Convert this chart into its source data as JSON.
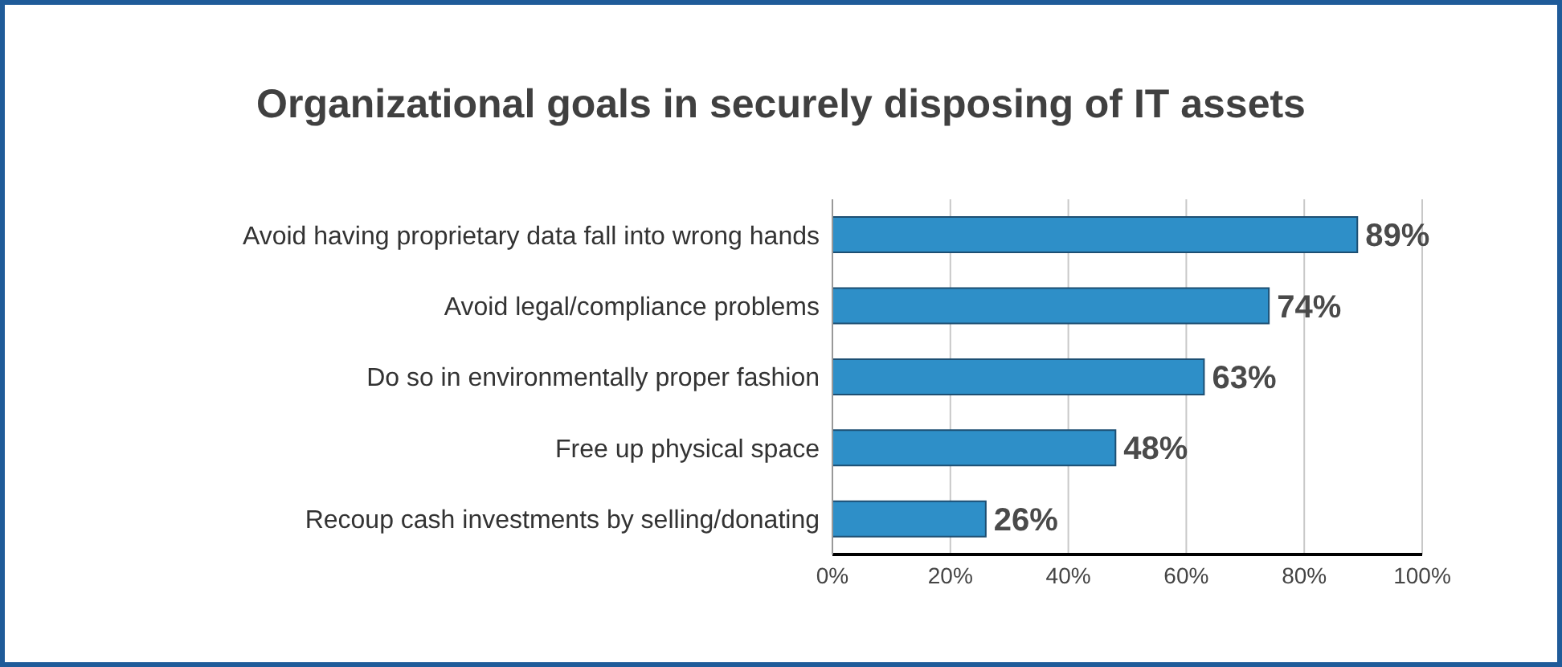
{
  "chart_data": {
    "type": "bar",
    "orientation": "horizontal",
    "title": "Organizational goals in securely disposing of IT assets",
    "categories": [
      "Avoid having proprietary data fall into wrong hands",
      "Avoid legal/compliance problems",
      "Do so in environmentally proper fashion",
      "Free up physical space",
      "Recoup cash investments by selling/donating"
    ],
    "values": [
      89,
      74,
      63,
      48,
      26
    ],
    "value_labels": [
      "89%",
      "74%",
      "63%",
      "48%",
      "26%"
    ],
    "color": "#2e8fc8",
    "xlim": [
      0,
      100
    ],
    "xticks": [
      {
        "value": 0,
        "label": "0%"
      },
      {
        "value": 20,
        "label": "20%"
      },
      {
        "value": 40,
        "label": "40%"
      },
      {
        "value": 60,
        "label": "60%"
      },
      {
        "value": 80,
        "label": "80%"
      },
      {
        "value": 100,
        "label": "100%"
      }
    ],
    "grid": "x",
    "legend": false
  }
}
